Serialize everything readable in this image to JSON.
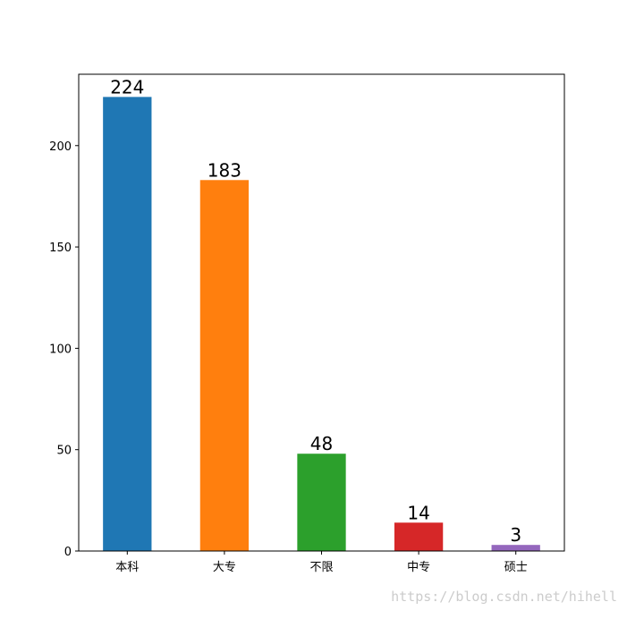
{
  "chart_data": {
    "type": "bar",
    "categories": [
      "本科",
      "大专",
      "不限",
      "中专",
      "硕士"
    ],
    "values": [
      224,
      183,
      48,
      14,
      3
    ],
    "colors": [
      "#1f77b4",
      "#ff7f0e",
      "#2ca02c",
      "#d62728",
      "#9467bd"
    ],
    "ylim": [
      0,
      235.2
    ],
    "yticks": [
      0,
      50,
      100,
      150,
      200
    ],
    "watermark": "https://blog.csdn.net/hihell"
  }
}
